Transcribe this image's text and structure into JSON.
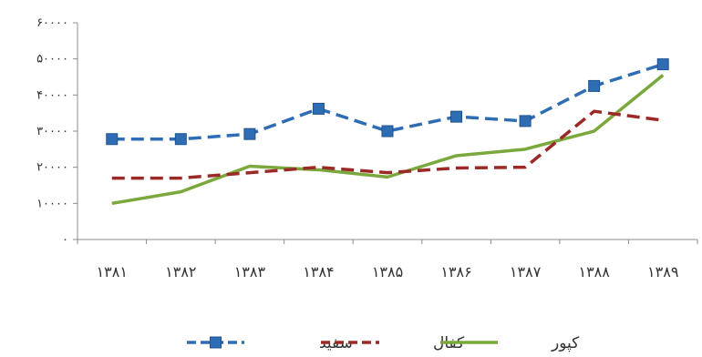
{
  "chart_data": {
    "type": "line",
    "categories": [
      "۱۳۸۱",
      "۱۳۸۲",
      "۱۳۸۳",
      "۱۳۸۴",
      "۱۳۸۵",
      "۱۳۸۶",
      "۱۳۸۷",
      "۱۳۸۸",
      "۱۳۸۹"
    ],
    "yticks": [
      "۰",
      "۱۰۰۰۰",
      "۲۰۰۰۰",
      "۳۰۰۰۰",
      "۴۰۰۰۰",
      "۵۰۰۰۰",
      "۶۰۰۰۰"
    ],
    "ylim": [
      0,
      60000
    ],
    "grid": false,
    "legend_position": "bottom",
    "series": [
      {
        "name": "سفید",
        "color": "#2e6db4",
        "style": "dashed-square-markers",
        "values": [
          27800,
          27800,
          29200,
          36200,
          30000,
          34000,
          32800,
          42500,
          48500
        ]
      },
      {
        "name": "کفال",
        "color": "#9b2a26",
        "style": "dashed",
        "values": [
          17000,
          17000,
          18500,
          20000,
          18500,
          19800,
          20000,
          35500,
          33000
        ]
      },
      {
        "name": "کپور",
        "color": "#7aa83c",
        "style": "solid",
        "values": [
          10000,
          13200,
          20300,
          19300,
          17300,
          23200,
          25000,
          30000,
          45500
        ]
      }
    ]
  }
}
